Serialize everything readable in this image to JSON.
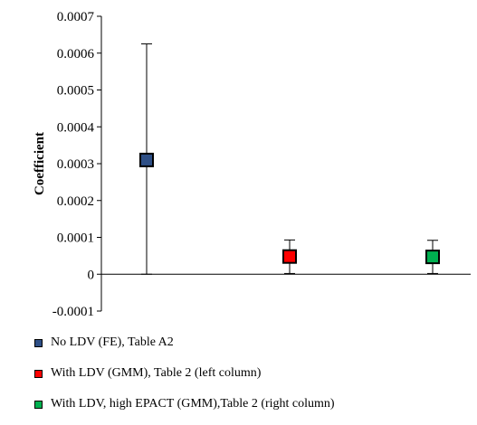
{
  "chart_data": {
    "type": "scatter",
    "title": "",
    "xlabel": "",
    "ylabel": "Coefficient",
    "ylim": [
      -0.0001,
      0.0007
    ],
    "yticks": [
      "-0.0001",
      "0",
      "0.0001",
      "0.0002",
      "0.0003",
      "0.0004",
      "0.0005",
      "0.0006",
      "0.0007"
    ],
    "grid": false,
    "legend_position": "bottom",
    "series": [
      {
        "name": "No LDV (FE), Table A2",
        "color": "#2e4f86",
        "value": 0.00031,
        "lower": 0.0,
        "upper": 0.000625
      },
      {
        "name": "With LDV (GMM), Table 2 (left column)",
        "color": "#ff0000",
        "value": 4.8e-05,
        "lower": 2e-06,
        "upper": 9.3e-05
      },
      {
        "name": "With LDV, high EPACT (GMM),Table 2 (right column)",
        "color": "#00b050",
        "value": 4.7e-05,
        "lower": 2e-06,
        "upper": 9.2e-05
      }
    ]
  }
}
